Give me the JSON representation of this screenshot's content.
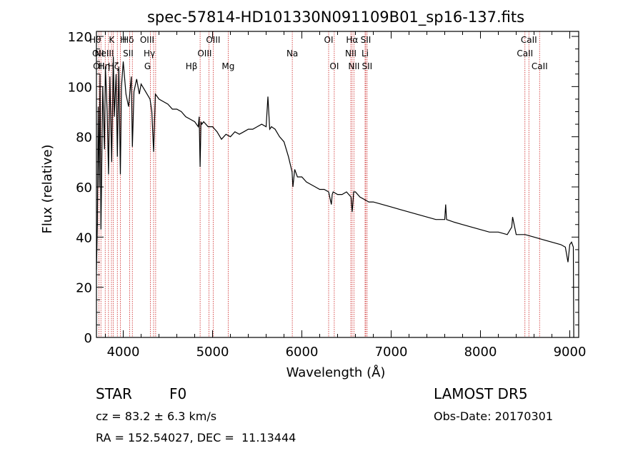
{
  "chart_data": {
    "type": "line",
    "title": "spec-57814-HD101330N091109B01_sp16-137.fits",
    "xlabel": "Wavelength (Å)",
    "ylabel": "Flux (relative)",
    "xlim": [
      3700,
      9100
    ],
    "ylim": [
      0,
      122
    ],
    "x_ticks": [
      4000,
      5000,
      6000,
      7000,
      8000,
      9000
    ],
    "y_ticks": [
      0,
      20,
      40,
      60,
      80,
      100,
      120
    ],
    "grid": false,
    "series": [
      {
        "x": [
          3700,
          3710,
          3720,
          3730,
          3740,
          3750,
          3770,
          3790,
          3800,
          3820,
          3835,
          3850,
          3870,
          3889,
          3900,
          3920,
          3934,
          3950,
          3968,
          3980,
          4000,
          4030,
          4060,
          4090,
          4102,
          4120,
          4150,
          4180,
          4200,
          4250,
          4300,
          4320,
          4340,
          4360,
          4400,
          4450,
          4500,
          4550,
          4600,
          4650,
          4700,
          4750,
          4800,
          4840,
          4850,
          4861,
          4870,
          4880,
          4900,
          4950,
          5000,
          5050,
          5100,
          5150,
          5200,
          5250,
          5300,
          5350,
          5400,
          5450,
          5500,
          5550,
          5600,
          5620,
          5640,
          5660,
          5700,
          5750,
          5800,
          5850,
          5890,
          5900,
          5920,
          5950,
          6000,
          6050,
          6100,
          6150,
          6200,
          6250,
          6300,
          6330,
          6340,
          6350,
          6400,
          6450,
          6500,
          6550,
          6563,
          6570,
          6580,
          6600,
          6650,
          6700,
          6750,
          6800,
          6900,
          7000,
          7100,
          7200,
          7300,
          7400,
          7500,
          7600,
          7610,
          7620,
          7700,
          7800,
          7900,
          8000,
          8100,
          8200,
          8300,
          8350,
          8360,
          8400,
          8500,
          8600,
          8700,
          8800,
          8900,
          8950,
          8980,
          9000,
          9020,
          9040,
          9045
        ],
        "y": [
          27,
          45,
          92,
          60,
          105,
          43,
          100,
          75,
          108,
          90,
          65,
          104,
          70,
          112,
          88,
          105,
          72,
          108,
          65,
          100,
          110,
          97,
          92,
          104,
          76,
          98,
          103,
          97,
          101,
          98,
          95,
          90,
          74,
          97,
          95,
          94,
          93,
          91,
          91,
          90,
          88,
          87,
          86,
          84,
          88,
          68,
          86,
          85,
          86,
          84,
          84,
          82,
          79,
          81,
          80,
          82,
          81,
          82,
          83,
          83,
          84,
          85,
          84,
          96,
          83,
          84,
          83,
          80,
          78,
          72,
          66,
          60,
          67,
          64,
          64,
          62,
          61,
          60,
          59,
          59,
          58,
          53,
          57,
          58,
          57,
          57,
          58,
          56,
          50,
          53,
          58,
          58,
          56,
          55,
          54,
          54,
          53,
          52,
          51,
          50,
          49,
          48,
          47,
          47,
          53,
          47,
          46,
          45,
          44,
          43,
          42,
          42,
          41,
          44,
          48,
          41,
          41,
          40,
          39,
          38,
          37,
          36,
          30,
          37,
          38,
          36,
          0
        ]
      }
    ],
    "lines": [
      {
        "wl": 3727,
        "label": "OII",
        "row": 2,
        "dx": 0
      },
      {
        "wl": 3750,
        "label": "OII",
        "row": 1,
        "dx": -4
      },
      {
        "wl": 3798,
        "label": "Hθ",
        "row": 0,
        "dx": -14
      },
      {
        "wl": 3835,
        "label": "Hη",
        "row": 2,
        "dx": -6
      },
      {
        "wl": 3868,
        "label": "NeIII",
        "row": 1,
        "dx": -10
      },
      {
        "wl": 3889,
        "label": "Hζ",
        "row": 2,
        "dx": 0
      },
      {
        "wl": 3934,
        "label": "K",
        "row": 0,
        "dx": -8
      },
      {
        "wl": 3968,
        "label": "H",
        "row": 0,
        "dx": 4
      },
      {
        "wl": 4102,
        "label": "Hδ",
        "row": 0,
        "dx": -6
      },
      {
        "wl": 4072,
        "label": "SII",
        "row": 1,
        "dx": -2
      },
      {
        "wl": 4304,
        "label": "G",
        "row": 2,
        "dx": -4
      },
      {
        "wl": 4340,
        "label": "Hγ",
        "row": 1,
        "dx": -6
      },
      {
        "wl": 4363,
        "label": "OIII",
        "row": 0,
        "dx": -12
      },
      {
        "wl": 4861,
        "label": "Hβ",
        "row": 2,
        "dx": -12
      },
      {
        "wl": 4959,
        "label": "OIII",
        "row": 1,
        "dx": -6
      },
      {
        "wl": 5007,
        "label": "OIII",
        "row": 0,
        "dx": 0
      },
      {
        "wl": 5175,
        "label": "Mg",
        "row": 2,
        "dx": 0
      },
      {
        "wl": 5893,
        "label": "Na",
        "row": 1,
        "dx": 0
      },
      {
        "wl": 6300,
        "label": "OI",
        "row": 0,
        "dx": 0
      },
      {
        "wl": 6363,
        "label": "OI",
        "row": 2,
        "dx": 0
      },
      {
        "wl": 6548,
        "label": "NII",
        "row": 1,
        "dx": 0
      },
      {
        "wl": 6563,
        "label": "Hα",
        "row": 0,
        "dx": 0
      },
      {
        "wl": 6583,
        "label": "NII",
        "row": 2,
        "dx": 0
      },
      {
        "wl": 6708,
        "label": "Li",
        "row": 1,
        "dx": 0
      },
      {
        "wl": 6716,
        "label": "SII",
        "row": 0,
        "dx": 0
      },
      {
        "wl": 6731,
        "label": "SII",
        "row": 2,
        "dx": 0
      },
      {
        "wl": 8498,
        "label": "CaII",
        "row": 1,
        "dx": 0
      },
      {
        "wl": 8542,
        "label": "CaII",
        "row": 0,
        "dx": 0
      },
      {
        "wl": 8662,
        "label": "CaII",
        "row": 2,
        "dx": 0
      }
    ]
  },
  "info": {
    "class": "STAR",
    "subclass": "F0",
    "survey": "LAMOST DR5",
    "cz": "cz = 83.2 ± 6.3 km/s",
    "obs_date": "Obs-Date: 20170301",
    "radec": "RA = 152.54027, DEC =  11.13444"
  },
  "colors": {
    "line_marker": "#cc2222",
    "spectrum": "#000000",
    "axes": "#000000"
  }
}
